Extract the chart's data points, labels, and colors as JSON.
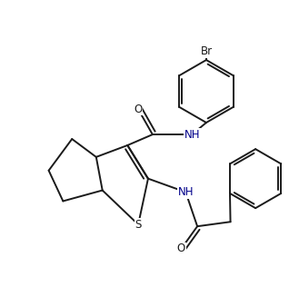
{
  "bg_color": "#ffffff",
  "bond_color": "#1a1a1a",
  "heteroatom_color": "#00008b",
  "atom_bg": "#ffffff",
  "bond_width": 1.4,
  "font_size": 8.5,
  "xlim": [
    0,
    10
  ],
  "ylim": [
    0,
    10
  ]
}
